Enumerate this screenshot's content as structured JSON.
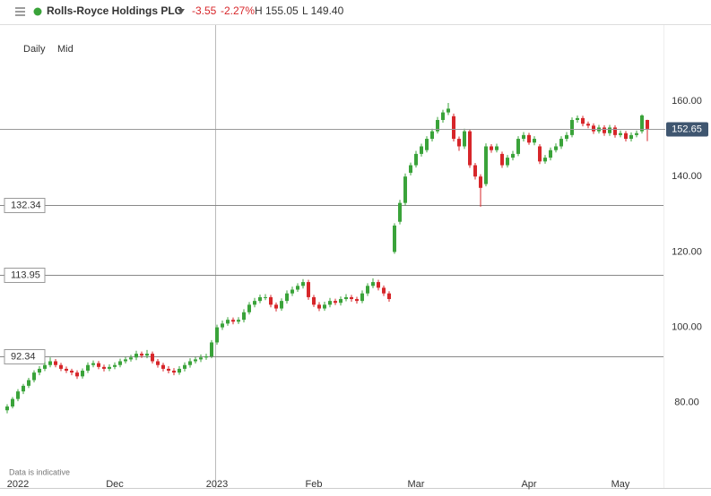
{
  "header": {
    "name": "Rolls-Royce Holdings PLC",
    "change": "-3.55",
    "change_pct": "-2.27%",
    "high": "H 155.05",
    "low": "L 149.40"
  },
  "chart_data": {
    "type": "candlestick",
    "interval": "Daily",
    "price_type": "Mid",
    "note": "Data is indicative",
    "up_color": "#3aa33a",
    "down_color": "#d7262a",
    "ylim": [
      57.4,
      179.7
    ],
    "yticks": [
      {
        "value": 80,
        "label": "80.00"
      },
      {
        "value": 100,
        "label": "100.00"
      },
      {
        "value": 120,
        "label": "120.00"
      },
      {
        "value": 140,
        "label": "140.00"
      },
      {
        "value": 160,
        "label": "160.00"
      }
    ],
    "levels": [
      132.34,
      113.95,
      92.34
    ],
    "categories": [
      null,
      null,
      "2022",
      null,
      null,
      null,
      null,
      null,
      null,
      null,
      null,
      null,
      null,
      null,
      null,
      null,
      null,
      null,
      null,
      null,
      "Dec",
      null,
      null,
      null,
      null,
      null,
      null,
      null,
      null,
      null,
      null,
      null,
      null,
      null,
      null,
      null,
      null,
      null,
      null,
      "2023",
      null,
      null,
      null,
      null,
      null,
      null,
      null,
      null,
      null,
      null,
      null,
      null,
      null,
      null,
      null,
      null,
      null,
      "Feb",
      null,
      null,
      null,
      null,
      null,
      null,
      null,
      null,
      null,
      null,
      null,
      null,
      null,
      null,
      null,
      null,
      null,
      null,
      "Mar",
      null,
      null,
      null,
      null,
      null,
      null,
      null,
      null,
      null,
      null,
      null,
      null,
      null,
      null,
      null,
      null,
      null,
      null,
      null,
      null,
      "Apr",
      null,
      null,
      null,
      null,
      null,
      null,
      null,
      null,
      null,
      null,
      null,
      null,
      null,
      null,
      null,
      null,
      "May",
      null,
      null,
      null,
      null,
      null
    ],
    "ohlc": [
      [
        78,
        79.6,
        77.2,
        79
      ],
      [
        79,
        81.5,
        78.5,
        81
      ],
      [
        81,
        83.6,
        80.4,
        83
      ],
      [
        83,
        85,
        82.3,
        84.5
      ],
      [
        84.5,
        86.6,
        83.9,
        86
      ],
      [
        86,
        88.6,
        85.4,
        88
      ],
      [
        88,
        89.7,
        87.3,
        89
      ],
      [
        89,
        90.8,
        88.4,
        90
      ],
      [
        90,
        92,
        89.4,
        91
      ],
      [
        91,
        91.6,
        89.4,
        90
      ],
      [
        90,
        90.6,
        88.4,
        89
      ],
      [
        89,
        89.6,
        87.9,
        88.5
      ],
      [
        88.5,
        89,
        87.3,
        88
      ],
      [
        88,
        88.6,
        86.3,
        87
      ],
      [
        87,
        89.1,
        86.4,
        88.5
      ],
      [
        88.5,
        90.7,
        87.9,
        90
      ],
      [
        90,
        91.2,
        89.4,
        90.5
      ],
      [
        90.5,
        91.1,
        88.9,
        89.5
      ],
      [
        89.5,
        90.1,
        88.3,
        89
      ],
      [
        89,
        90.2,
        88.4,
        89.5
      ],
      [
        89.5,
        90.7,
        88.9,
        90
      ],
      [
        90,
        91.7,
        89.4,
        91
      ],
      [
        91,
        92.2,
        90.4,
        91.5
      ],
      [
        91.5,
        92.7,
        90.9,
        92
      ],
      [
        92,
        93.8,
        91.3,
        93
      ],
      [
        93,
        93.6,
        91.9,
        92.5
      ],
      [
        92.5,
        94,
        91.8,
        93
      ],
      [
        93,
        93.6,
        90.4,
        91
      ],
      [
        91,
        91.6,
        89.3,
        90
      ],
      [
        90,
        90.6,
        88.3,
        89
      ],
      [
        89,
        89.7,
        87.8,
        88.5
      ],
      [
        88.5,
        89.2,
        87.3,
        88
      ],
      [
        88,
        89.7,
        87.4,
        89
      ],
      [
        89,
        90.7,
        88.3,
        90
      ],
      [
        90,
        91.8,
        89.3,
        91
      ],
      [
        91,
        92.2,
        90.4,
        91.5
      ],
      [
        91.5,
        92.8,
        90.8,
        92
      ],
      [
        92,
        93,
        91.4,
        92.3
      ],
      [
        92.3,
        96.6,
        91.8,
        96
      ],
      [
        96,
        100.7,
        95.4,
        100
      ],
      [
        100,
        101.8,
        99.3,
        101
      ],
      [
        101,
        102.7,
        100.4,
        102
      ],
      [
        102,
        102.6,
        100.8,
        101.5
      ],
      [
        101.5,
        102.7,
        100.9,
        102
      ],
      [
        102,
        104.8,
        101.3,
        104
      ],
      [
        104,
        106.7,
        103.4,
        106
      ],
      [
        106,
        107.8,
        105.3,
        107
      ],
      [
        107,
        108.7,
        106.4,
        108
      ],
      [
        108,
        108.8,
        107.2,
        108
      ],
      [
        108,
        108.6,
        105.3,
        106
      ],
      [
        106,
        106.6,
        104.2,
        105
      ],
      [
        105,
        107.7,
        104.4,
        107
      ],
      [
        107,
        109.8,
        106.3,
        109
      ],
      [
        109,
        110.8,
        108.3,
        110
      ],
      [
        110,
        111.7,
        109.4,
        111
      ],
      [
        111,
        112.8,
        110.3,
        112
      ],
      [
        112,
        112.6,
        107.3,
        108
      ],
      [
        108,
        108.6,
        105.4,
        106
      ],
      [
        106,
        106.7,
        104.3,
        105
      ],
      [
        105,
        106.8,
        104.4,
        106
      ],
      [
        106,
        107.8,
        105.3,
        107
      ],
      [
        107,
        107.6,
        105.9,
        106.5
      ],
      [
        106.5,
        108.2,
        105.8,
        107.5
      ],
      [
        107.5,
        108.8,
        106.9,
        108
      ],
      [
        108,
        108.6,
        106.8,
        107.5
      ],
      [
        107.5,
        108.1,
        106.3,
        107
      ],
      [
        107,
        109.8,
        106.4,
        109
      ],
      [
        109,
        111.7,
        108.3,
        111
      ],
      [
        111,
        113,
        110.4,
        112
      ],
      [
        112,
        112.6,
        109.8,
        110.5
      ],
      [
        110.5,
        111.1,
        108.3,
        109
      ],
      [
        109,
        109.6,
        106.8,
        107.5
      ],
      [
        120,
        127.6,
        119.5,
        127
      ],
      [
        128,
        133.8,
        127.3,
        133
      ],
      [
        133,
        140.8,
        132.3,
        140
      ],
      [
        141,
        143.7,
        140.3,
        143
      ],
      [
        143,
        146.8,
        142.4,
        146
      ],
      [
        146,
        148.7,
        145.3,
        148
      ],
      [
        147,
        150.7,
        146.4,
        150
      ],
      [
        150,
        152.7,
        149.3,
        152
      ],
      [
        152,
        155.8,
        151.4,
        155
      ],
      [
        155,
        157.7,
        154.3,
        157
      ],
      [
        157,
        159.5,
        156.3,
        158
      ],
      [
        156,
        156.7,
        149.3,
        150
      ],
      [
        150,
        150.6,
        146.8,
        148
      ],
      [
        148,
        152.7,
        147.3,
        152
      ],
      [
        152,
        152.6,
        142.3,
        143
      ],
      [
        143,
        143.6,
        139.2,
        140
      ],
      [
        140,
        140.6,
        132,
        137
      ],
      [
        138,
        148.8,
        137.4,
        148
      ],
      [
        148,
        148.6,
        146.3,
        147
      ],
      [
        147,
        148.7,
        146.4,
        148
      ],
      [
        146,
        146.6,
        142.3,
        143
      ],
      [
        143,
        145.7,
        142.4,
        145
      ],
      [
        145,
        146.8,
        144.3,
        146
      ],
      [
        146,
        150.7,
        145.4,
        150
      ],
      [
        150,
        151.8,
        149.3,
        151
      ],
      [
        151,
        151.6,
        148.4,
        149
      ],
      [
        149,
        150.7,
        148.3,
        150
      ],
      [
        148,
        148.6,
        143.3,
        144
      ],
      [
        144,
        145.7,
        143.4,
        145
      ],
      [
        145,
        147.7,
        144.3,
        147
      ],
      [
        147,
        148.8,
        146.4,
        148
      ],
      [
        148,
        150.7,
        147.3,
        150
      ],
      [
        150,
        151.8,
        149.3,
        151
      ],
      [
        151,
        155.7,
        150.4,
        155
      ],
      [
        155,
        156.2,
        154.3,
        155.5
      ],
      [
        155.5,
        156.1,
        153.3,
        154
      ],
      [
        154,
        154.6,
        152.8,
        153.5
      ],
      [
        153.5,
        154.1,
        151.3,
        152
      ],
      [
        152,
        153.7,
        151.4,
        153
      ],
      [
        153,
        153.6,
        150.8,
        151.5
      ],
      [
        151.5,
        153.7,
        150.8,
        153
      ],
      [
        153,
        153.6,
        150.3,
        151
      ],
      [
        151,
        152.2,
        150.4,
        151.5
      ],
      [
        151.5,
        152.1,
        149.3,
        150
      ],
      [
        150,
        151.7,
        149.3,
        151
      ],
      [
        151,
        152.2,
        150.4,
        151.5
      ],
      [
        152,
        156.5,
        151.4,
        156.2
      ],
      [
        155,
        155.05,
        149.4,
        152.65
      ]
    ]
  }
}
